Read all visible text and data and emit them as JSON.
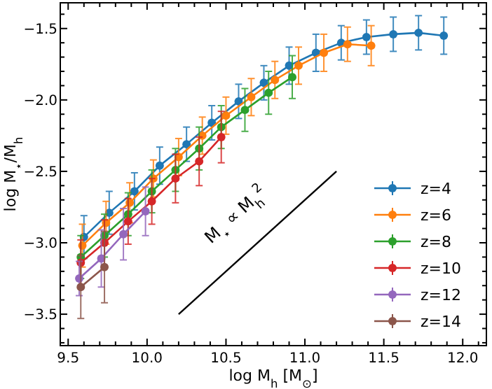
{
  "chart_data": {
    "type": "line",
    "xlabel": "log  M$_{h}$  [M$_{⊙}$]",
    "ylabel": "log M$_{⋆}$/M$_{h}$",
    "xlim": [
      9.45,
      12.15
    ],
    "ylim": [
      -3.72,
      -1.32
    ],
    "xticks": [
      {
        "value": 9.5,
        "label": "9.5"
      },
      {
        "value": 9.6,
        "label": null
      },
      {
        "value": 9.7,
        "label": null
      },
      {
        "value": 9.8,
        "label": null
      },
      {
        "value": 9.9,
        "label": null
      },
      {
        "value": 10.0,
        "label": "10.0"
      },
      {
        "value": 10.1,
        "label": null
      },
      {
        "value": 10.2,
        "label": null
      },
      {
        "value": 10.3,
        "label": null
      },
      {
        "value": 10.4,
        "label": null
      },
      {
        "value": 10.5,
        "label": "10.5"
      },
      {
        "value": 10.6,
        "label": null
      },
      {
        "value": 10.7,
        "label": null
      },
      {
        "value": 10.8,
        "label": null
      },
      {
        "value": 10.9,
        "label": null
      },
      {
        "value": 11.0,
        "label": "11.0"
      },
      {
        "value": 11.1,
        "label": null
      },
      {
        "value": 11.2,
        "label": null
      },
      {
        "value": 11.3,
        "label": null
      },
      {
        "value": 11.4,
        "label": null
      },
      {
        "value": 11.5,
        "label": "11.5"
      },
      {
        "value": 11.6,
        "label": null
      },
      {
        "value": 11.7,
        "label": null
      },
      {
        "value": 11.8,
        "label": null
      },
      {
        "value": 11.9,
        "label": null
      },
      {
        "value": 12.0,
        "label": "12.0"
      },
      {
        "value": 12.1,
        "label": null
      }
    ],
    "yticks": [
      {
        "value": -3.7,
        "label": null
      },
      {
        "value": -3.6,
        "label": null
      },
      {
        "value": -3.5,
        "label": "−3.5"
      },
      {
        "value": -3.4,
        "label": null
      },
      {
        "value": -3.3,
        "label": null
      },
      {
        "value": -3.2,
        "label": null
      },
      {
        "value": -3.1,
        "label": null
      },
      {
        "value": -3.0,
        "label": "−3.0"
      },
      {
        "value": -2.9,
        "label": null
      },
      {
        "value": -2.8,
        "label": null
      },
      {
        "value": -2.7,
        "label": null
      },
      {
        "value": -2.6,
        "label": null
      },
      {
        "value": -2.5,
        "label": "−2.5"
      },
      {
        "value": -2.4,
        "label": null
      },
      {
        "value": -2.3,
        "label": null
      },
      {
        "value": -2.2,
        "label": null
      },
      {
        "value": -2.1,
        "label": null
      },
      {
        "value": -2.0,
        "label": "−2.0"
      },
      {
        "value": -1.9,
        "label": null
      },
      {
        "value": -1.8,
        "label": null
      },
      {
        "value": -1.7,
        "label": null
      },
      {
        "value": -1.6,
        "label": null
      },
      {
        "value": -1.5,
        "label": "−1.5"
      },
      {
        "value": -1.4,
        "label": null
      }
    ],
    "grid": false,
    "legend": "bottom right",
    "marker": "circle",
    "line_style": "solid",
    "series": [
      {
        "name": "z=4",
        "color": "#1f77b4",
        "x": [
          9.6,
          9.76,
          9.92,
          10.08,
          10.25,
          10.41,
          10.58,
          10.74,
          10.9,
          11.07,
          11.23,
          11.39,
          11.56,
          11.72,
          11.88
        ],
        "values": [
          -2.96,
          -2.79,
          -2.64,
          -2.46,
          -2.31,
          -2.16,
          -2.01,
          -1.88,
          -1.76,
          -1.67,
          -1.6,
          -1.56,
          -1.54,
          -1.53,
          -1.55
        ],
        "errors": [
          0.15,
          0.15,
          0.13,
          0.13,
          0.12,
          0.12,
          0.12,
          0.12,
          0.13,
          0.13,
          0.12,
          0.12,
          0.12,
          0.12,
          0.13
        ]
      },
      {
        "name": "z=6",
        "color": "#ff7f0e",
        "x": [
          9.59,
          9.74,
          9.89,
          10.04,
          10.2,
          10.35,
          10.5,
          10.66,
          10.81,
          10.96,
          11.12,
          11.27,
          11.42
        ],
        "values": [
          -3.02,
          -2.86,
          -2.72,
          -2.55,
          -2.4,
          -2.25,
          -2.11,
          -1.98,
          -1.86,
          -1.76,
          -1.67,
          -1.61,
          -1.62
        ],
        "errors": [
          0.15,
          0.15,
          0.14,
          0.13,
          0.13,
          0.13,
          0.13,
          0.13,
          0.13,
          0.13,
          0.13,
          0.12,
          0.14
        ]
      },
      {
        "name": "z=8",
        "color": "#2ca02c",
        "x": [
          9.58,
          9.73,
          9.88,
          10.03,
          10.18,
          10.33,
          10.47,
          10.62,
          10.77,
          10.92
        ],
        "values": [
          -3.1,
          -2.95,
          -2.8,
          -2.64,
          -2.49,
          -2.34,
          -2.19,
          -2.07,
          -1.95,
          -1.84
        ],
        "errors": [
          0.15,
          0.15,
          0.15,
          0.15,
          0.15,
          0.15,
          0.15,
          0.15,
          0.15,
          0.15
        ]
      },
      {
        "name": "z=10",
        "color": "#d62728",
        "x": [
          9.58,
          9.73,
          9.88,
          10.03,
          10.18,
          10.33,
          10.47
        ],
        "values": [
          -3.14,
          -3.0,
          -2.85,
          -2.71,
          -2.55,
          -2.43,
          -2.26
        ],
        "errors": [
          0.16,
          0.16,
          0.16,
          0.16,
          0.17,
          0.17,
          0.18
        ]
      },
      {
        "name": "z=12",
        "color": "#9467bd",
        "x": [
          9.57,
          9.71,
          9.85,
          9.99
        ],
        "values": [
          -3.25,
          -3.11,
          -2.94,
          -2.78
        ],
        "errors": [
          0.12,
          0.2,
          0.18,
          0.17
        ]
      },
      {
        "name": "z=14",
        "color": "#8c564b",
        "x": [
          9.58,
          9.73
        ],
        "values": [
          -3.31,
          -3.17
        ],
        "errors": [
          0.22,
          0.25
        ]
      },
      {
        "type": "line",
        "color": "#000000",
        "marker": "none",
        "x": [
          10.2,
          11.2
        ],
        "values": [
          -3.5,
          -2.5
        ]
      }
    ],
    "annotations": [
      "M$_{⋆}$ ∝ M$_{h}$$^{2}$"
    ]
  }
}
